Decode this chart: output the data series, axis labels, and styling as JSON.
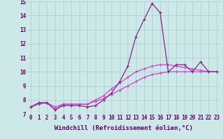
{
  "xlabel": "Windchill (Refroidissement éolien,°C)",
  "xlim": [
    -0.5,
    23.5
  ],
  "ylim": [
    7,
    15
  ],
  "xtick_labels": [
    "0",
    "1",
    "2",
    "3",
    "4",
    "5",
    "6",
    "7",
    "8",
    "9",
    "10",
    "11",
    "12",
    "13",
    "14",
    "15",
    "16",
    "17",
    "18",
    "19",
    "20",
    "21",
    "22",
    "23"
  ],
  "ytick_labels": [
    "7",
    "8",
    "9",
    "10",
    "11",
    "12",
    "13",
    "14",
    "15"
  ],
  "background_color": "#cde8e8",
  "grid_color": "#aacccc",
  "line_color_dark": "#882288",
  "line_color_bright": "#cc44cc",
  "series1": [
    7.5,
    7.8,
    7.8,
    7.3,
    7.6,
    7.6,
    7.6,
    7.5,
    7.6,
    8.0,
    8.5,
    9.3,
    10.4,
    12.5,
    13.7,
    14.85,
    14.2,
    10.0,
    10.5,
    10.5,
    10.0,
    10.7,
    10.0,
    10.0
  ],
  "series2": [
    7.5,
    7.8,
    7.8,
    7.3,
    7.7,
    7.7,
    7.7,
    7.7,
    8.0,
    8.3,
    8.8,
    9.2,
    9.6,
    10.0,
    10.2,
    10.4,
    10.5,
    10.5,
    10.4,
    10.3,
    10.2,
    10.1,
    10.0,
    10.0
  ],
  "series3": [
    7.5,
    7.7,
    7.8,
    7.5,
    7.7,
    7.7,
    7.7,
    7.7,
    7.9,
    8.1,
    8.4,
    8.7,
    9.0,
    9.3,
    9.6,
    9.8,
    9.9,
    10.0,
    10.0,
    10.0,
    10.0,
    10.0,
    10.0,
    10.0
  ],
  "tick_fontsize": 5.5,
  "label_fontsize": 6.5,
  "font_family": "monospace"
}
